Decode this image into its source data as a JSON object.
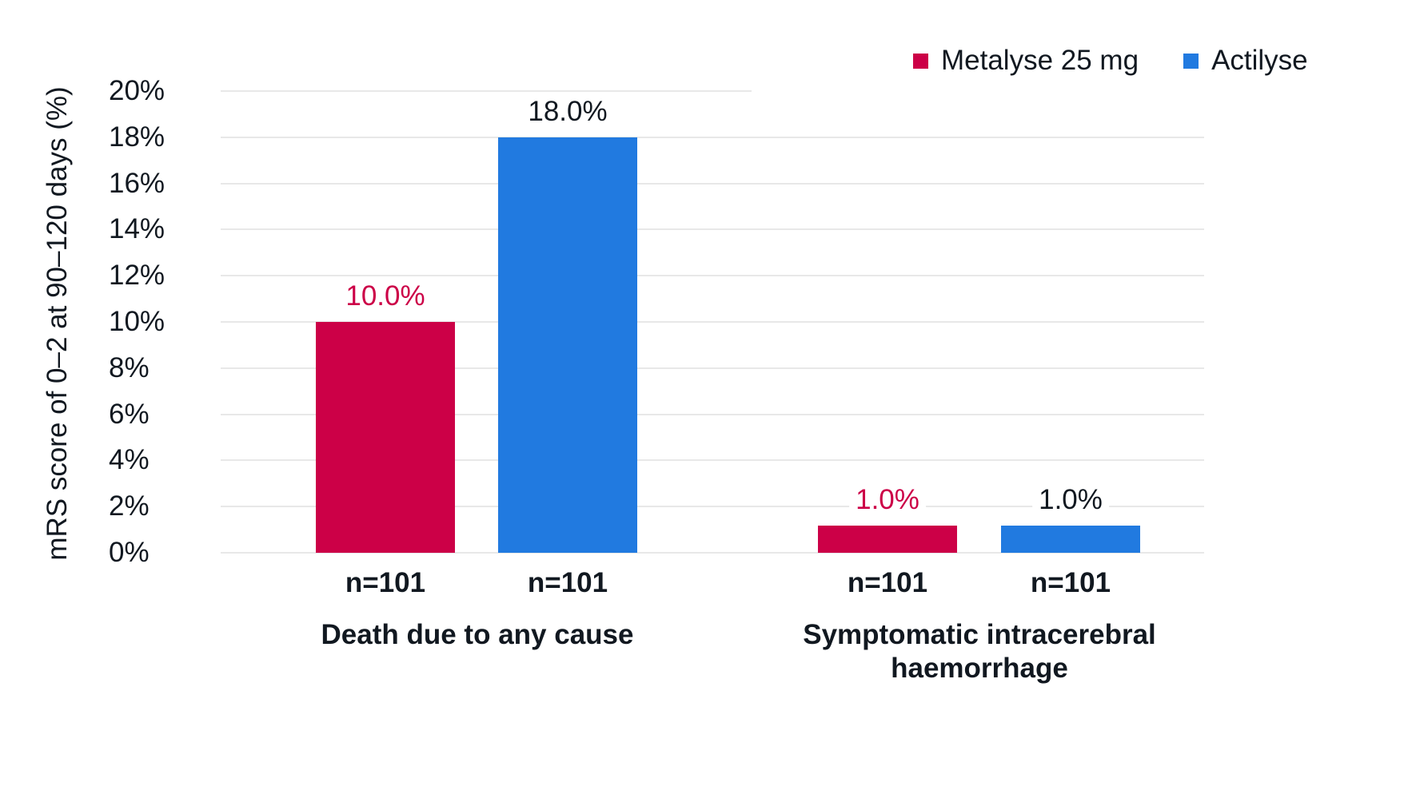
{
  "chart_data": {
    "type": "bar",
    "title": "",
    "xlabel": "",
    "ylabel": "mRS score of 0–2 at 90–120 days (%)",
    "ylim": [
      0,
      20
    ],
    "yticks": [
      "0%",
      "2%",
      "4%",
      "6%",
      "8%",
      "10%",
      "12%",
      "14%",
      "16%",
      "18%",
      "20%"
    ],
    "grid": true,
    "legend_position": "top-right",
    "categories": [
      "Death due to any cause",
      "Symptomatic intracerebral haemorrhage"
    ],
    "series": [
      {
        "name": "Metalyse 25 mg",
        "color": "#cc0047",
        "values": [
          10.0,
          1.0
        ],
        "labels": [
          "10.0%",
          "1.0%"
        ],
        "n": [
          "n=101",
          "n=101"
        ]
      },
      {
        "name": "Actilyse",
        "color": "#217ae0",
        "values": [
          18.0,
          1.0
        ],
        "labels": [
          "18.0%",
          "1.0%"
        ],
        "n": [
          "n=101",
          "n=101"
        ]
      }
    ]
  },
  "legend": {
    "items": [
      {
        "label": "Metalyse 25 mg",
        "color": "#cc0047"
      },
      {
        "label": "Actilyse",
        "color": "#217ae0"
      }
    ]
  },
  "category_lines": {
    "cat0": [
      "Death due to any cause"
    ],
    "cat1": [
      "Symptomatic intracerebral",
      "haemorrhage"
    ]
  }
}
